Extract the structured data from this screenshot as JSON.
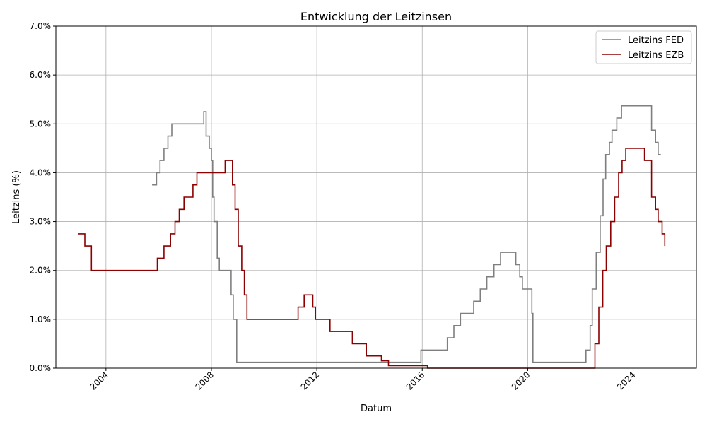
{
  "chart_data": {
    "type": "line",
    "title": "Entwicklung der Leitzinsen",
    "xlabel": "Datum",
    "ylabel": "Leitzins (%)",
    "xlim": [
      2002.1,
      2026.4
    ],
    "ylim": [
      0,
      7
    ],
    "x_ticks": [
      2004,
      2008,
      2012,
      2016,
      2020,
      2024
    ],
    "x_tick_labels": [
      "2004",
      "2008",
      "2012",
      "2016",
      "2020",
      "2024"
    ],
    "y_ticks": [
      0,
      1,
      2,
      3,
      4,
      5,
      6,
      7
    ],
    "y_tick_labels": [
      "0.0%",
      "1.0%",
      "2.0%",
      "3.0%",
      "4.0%",
      "5.0%",
      "6.0%",
      "7.0%"
    ],
    "grid": true,
    "legend_position": "top-right",
    "step": "post",
    "series": [
      {
        "name": "Leitzins FED",
        "color": "#7f7f7f",
        "x": [
          2005.75,
          2005.92,
          2006.05,
          2006.2,
          2006.35,
          2006.5,
          2007.71,
          2007.8,
          2007.92,
          2008.0,
          2008.05,
          2008.1,
          2008.22,
          2008.3,
          2008.75,
          2008.83,
          2008.96,
          2015.95,
          2016.95,
          2017.2,
          2017.45,
          2017.95,
          2018.2,
          2018.45,
          2018.72,
          2018.97,
          2019.55,
          2019.7,
          2019.8,
          2020.16,
          2020.2,
          2022.21,
          2022.37,
          2022.45,
          2022.6,
          2022.75,
          2022.86,
          2022.96,
          2023.1,
          2023.2,
          2023.38,
          2023.56,
          2024.7,
          2024.85,
          2024.95,
          2025.05
        ],
        "y": [
          3.75,
          4.0,
          4.25,
          4.5,
          4.75,
          5.0,
          5.25,
          4.75,
          4.5,
          4.25,
          3.5,
          3.0,
          2.25,
          2.0,
          1.5,
          1.0,
          0.12,
          0.37,
          0.62,
          0.87,
          1.12,
          1.37,
          1.62,
          1.87,
          2.12,
          2.37,
          2.12,
          1.87,
          1.62,
          1.12,
          0.12,
          0.37,
          0.87,
          1.62,
          2.37,
          3.12,
          3.87,
          4.37,
          4.62,
          4.87,
          5.12,
          5.37,
          4.87,
          4.62,
          4.37,
          4.37
        ]
      },
      {
        "name": "Leitzins EZB",
        "color": "#8b0000",
        "x": [
          2002.95,
          2003.2,
          2003.45,
          2005.95,
          2006.2,
          2006.45,
          2006.62,
          2006.78,
          2006.96,
          2007.3,
          2007.45,
          2008.52,
          2008.8,
          2008.9,
          2009.02,
          2009.15,
          2009.25,
          2009.35,
          2011.29,
          2011.52,
          2011.85,
          2011.95,
          2012.5,
          2013.35,
          2013.88,
          2014.45,
          2014.72,
          2016.2,
          2022.55,
          2022.7,
          2022.85,
          2022.98,
          2023.15,
          2023.3,
          2023.45,
          2023.58,
          2023.72,
          2024.43,
          2024.7,
          2024.85,
          2024.95,
          2025.1,
          2025.2
        ],
        "y": [
          2.75,
          2.5,
          2.0,
          2.25,
          2.5,
          2.75,
          3.0,
          3.25,
          3.5,
          3.75,
          4.0,
          4.25,
          3.75,
          3.25,
          2.5,
          2.0,
          1.5,
          1.0,
          1.25,
          1.5,
          1.25,
          1.0,
          0.75,
          0.5,
          0.25,
          0.15,
          0.05,
          0.0,
          0.5,
          1.25,
          2.0,
          2.5,
          3.0,
          3.5,
          4.0,
          4.25,
          4.5,
          4.25,
          3.5,
          3.25,
          3.0,
          2.75,
          2.5
        ]
      }
    ]
  }
}
